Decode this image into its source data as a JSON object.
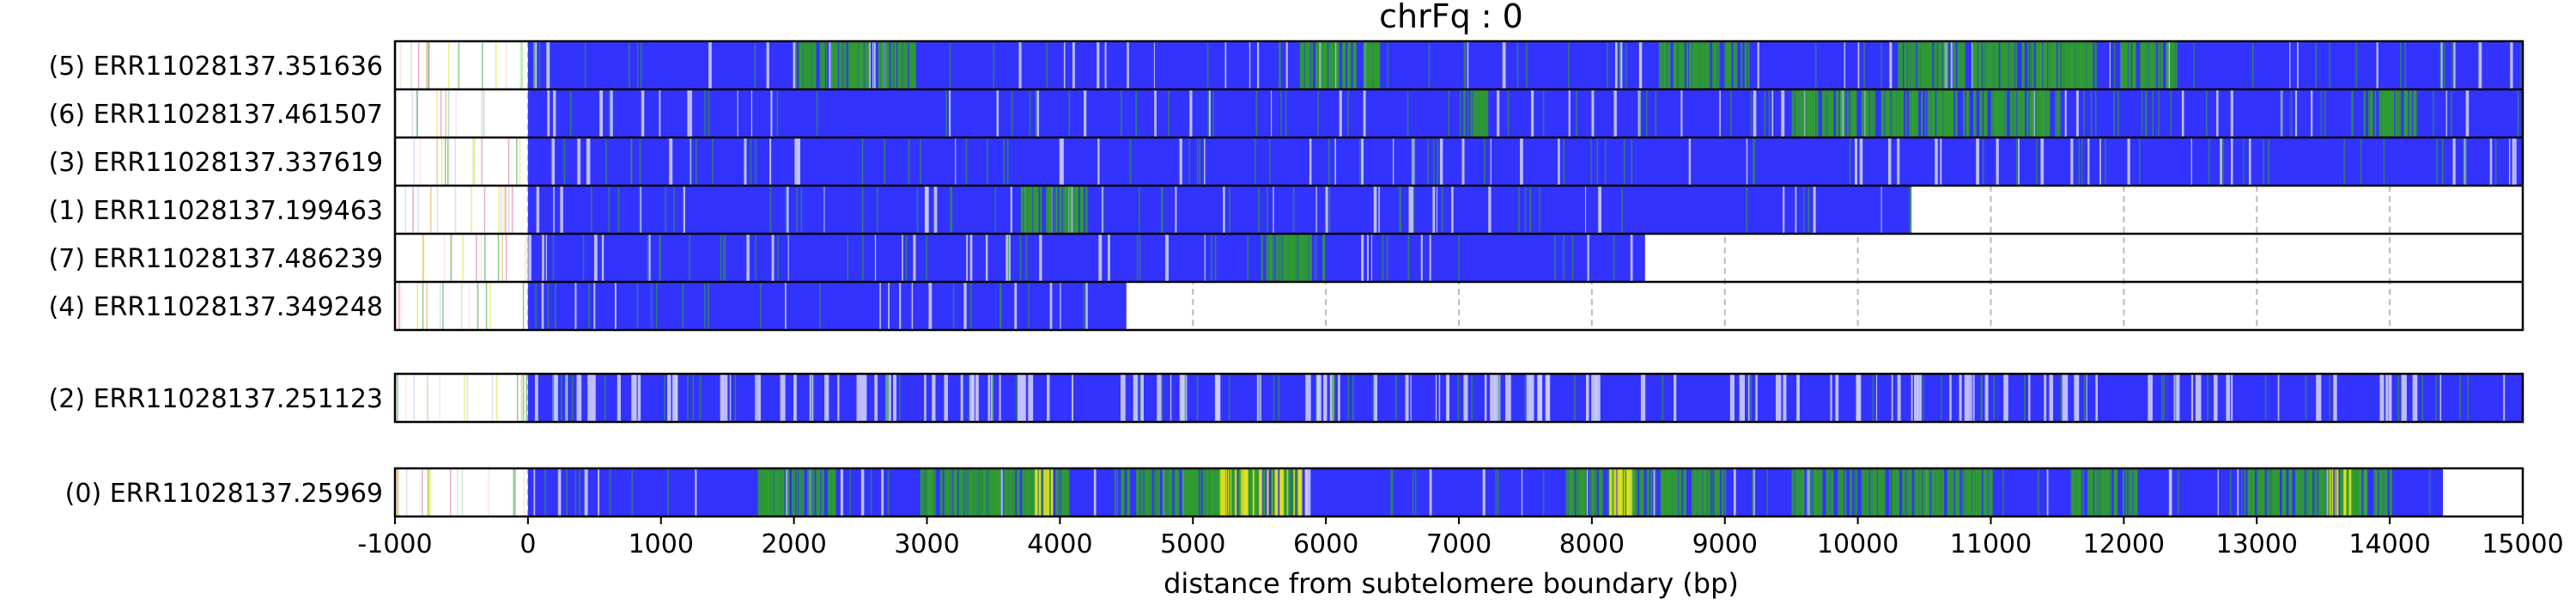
{
  "chart_data": {
    "type": "heatmap",
    "title": "chrFq : 0",
    "xlabel": "distance from subtelomere boundary (bp)",
    "ylabel": "",
    "xlim": [
      -1000,
      15000
    ],
    "xticks": [
      -1000,
      0,
      1000,
      2000,
      3000,
      4000,
      5000,
      6000,
      7000,
      8000,
      9000,
      10000,
      11000,
      12000,
      13000,
      14000,
      15000
    ],
    "grid": "vertical dashed at x ticks",
    "colors": {
      "main": "#3333ff",
      "light": "#ccccff",
      "green": "#2e9e2e",
      "yellow": "#e0e020",
      "frame": "#000000",
      "grid": "#bbbbbb"
    },
    "groups": [
      {
        "rows": [
          {
            "label": "(5) ERR11028137.351636",
            "start": 0,
            "end": 15000,
            "green_regions": [
              [
                2000,
                2900
              ],
              [
                5800,
                6400
              ],
              [
                10300,
                12400
              ],
              [
                8500,
                9200
              ]
            ]
          },
          {
            "label": "(6) ERR11028137.461507",
            "start": 0,
            "end": 15000,
            "green_regions": [
              [
                9500,
                11500
              ],
              [
                13800,
                14200
              ],
              [
                7000,
                7200
              ]
            ]
          },
          {
            "label": "(3) ERR11028137.337619",
            "start": 0,
            "end": 15000,
            "green_regions": []
          },
          {
            "label": "(1) ERR11028137.199463",
            "start": 0,
            "end": 10400,
            "green_regions": [
              [
                3700,
                4200
              ]
            ]
          },
          {
            "label": "(7) ERR11028137.486239",
            "start": 0,
            "end": 8400,
            "green_regions": [
              [
                5500,
                6000
              ]
            ]
          },
          {
            "label": "(4) ERR11028137.349248",
            "start": 0,
            "end": 4500,
            "green_regions": []
          }
        ]
      },
      {
        "rows": [
          {
            "label": "(2) ERR11028137.251123",
            "start": 0,
            "end": 15000,
            "green_regions": []
          }
        ]
      },
      {
        "rows": [
          {
            "label": "(0) ERR11028137.25969",
            "start": 0,
            "end": 14400,
            "green_regions": [
              [
                1700,
                2300
              ],
              [
                2900,
                4100
              ],
              [
                4400,
                5800
              ],
              [
                7800,
                9000
              ],
              [
                9500,
                11000
              ],
              [
                11600,
                12100
              ],
              [
                12900,
                14000
              ]
            ],
            "yellow_regions": [
              [
                5200,
                5800
              ],
              [
                3800,
                4000
              ],
              [
                8100,
                8300
              ],
              [
                13500,
                13700
              ]
            ]
          }
        ]
      }
    ]
  }
}
